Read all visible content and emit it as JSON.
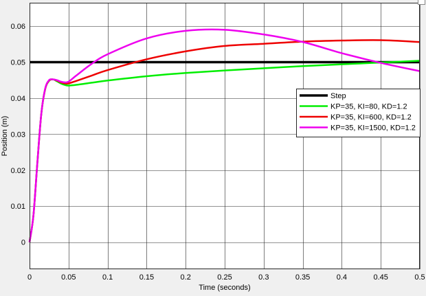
{
  "chart_data": {
    "type": "line",
    "title": "",
    "xlabel": "Time (seconds)",
    "ylabel": "Position (m)",
    "xlim": [
      0,
      0.5
    ],
    "ylim": [
      -0.0075,
      0.0665
    ],
    "xticks": [
      0,
      0.05,
      0.1,
      0.15,
      0.2,
      0.25,
      0.3,
      0.35,
      0.4,
      0.45,
      0.5
    ],
    "xtick_labels": [
      "0",
      "0.05",
      "0.1",
      "0.15",
      "0.2",
      "0.25",
      "0.3",
      "0.35",
      "0.4",
      "0.45",
      "0.5"
    ],
    "yticks": [
      0,
      0.01,
      0.02,
      0.03,
      0.04,
      0.05,
      0.06
    ],
    "ytick_labels": [
      "0",
      "0.01",
      "0.02",
      "0.03",
      "0.04",
      "0.05",
      "0.06"
    ],
    "grid": true,
    "legend_position": "right",
    "series": [
      {
        "name": "Step",
        "color": "#000000",
        "x": [
          0,
          0.5
        ],
        "y": [
          0.05,
          0.05
        ]
      },
      {
        "name": "KP=35, KI=80, KD=1.2",
        "color": "#00ee00",
        "x": [
          0,
          0.005,
          0.01,
          0.015,
          0.02,
          0.025,
          0.03,
          0.035,
          0.04,
          0.045,
          0.05,
          0.06,
          0.08,
          0.1,
          0.15,
          0.2,
          0.25,
          0.3,
          0.35,
          0.4,
          0.45,
          0.5
        ],
        "y": [
          0,
          0.0075,
          0.022,
          0.0355,
          0.0425,
          0.0448,
          0.0452,
          0.0447,
          0.0441,
          0.0437,
          0.0435,
          0.0437,
          0.0443,
          0.0449,
          0.0461,
          0.047,
          0.0477,
          0.0483,
          0.0489,
          0.0494,
          0.0499,
          0.0504
        ]
      },
      {
        "name": "KP=35, KI=600, KD=1.2",
        "color": "#ee0000",
        "x": [
          0,
          0.005,
          0.01,
          0.015,
          0.02,
          0.025,
          0.03,
          0.035,
          0.04,
          0.045,
          0.05,
          0.06,
          0.08,
          0.1,
          0.15,
          0.2,
          0.25,
          0.3,
          0.35,
          0.4,
          0.45,
          0.5
        ],
        "y": [
          0,
          0.0075,
          0.022,
          0.0355,
          0.0425,
          0.0449,
          0.0452,
          0.0449,
          0.0444,
          0.0441,
          0.0441,
          0.0448,
          0.0463,
          0.0478,
          0.0508,
          0.053,
          0.0545,
          0.0551,
          0.0557,
          0.056,
          0.0561,
          0.0556
        ]
      },
      {
        "name": "KP=35, KI=1500, KD=1.2",
        "color": "#ee00ee",
        "x": [
          0,
          0.005,
          0.01,
          0.015,
          0.02,
          0.025,
          0.03,
          0.035,
          0.04,
          0.045,
          0.05,
          0.06,
          0.08,
          0.1,
          0.15,
          0.2,
          0.25,
          0.3,
          0.35,
          0.4,
          0.45,
          0.5
        ],
        "y": [
          0,
          0.0075,
          0.022,
          0.0355,
          0.0426,
          0.045,
          0.0452,
          0.045,
          0.0446,
          0.0444,
          0.0446,
          0.0463,
          0.0496,
          0.0522,
          0.0566,
          0.0587,
          0.059,
          0.0577,
          0.0556,
          0.0525,
          0.0498,
          0.0475
        ]
      }
    ]
  }
}
